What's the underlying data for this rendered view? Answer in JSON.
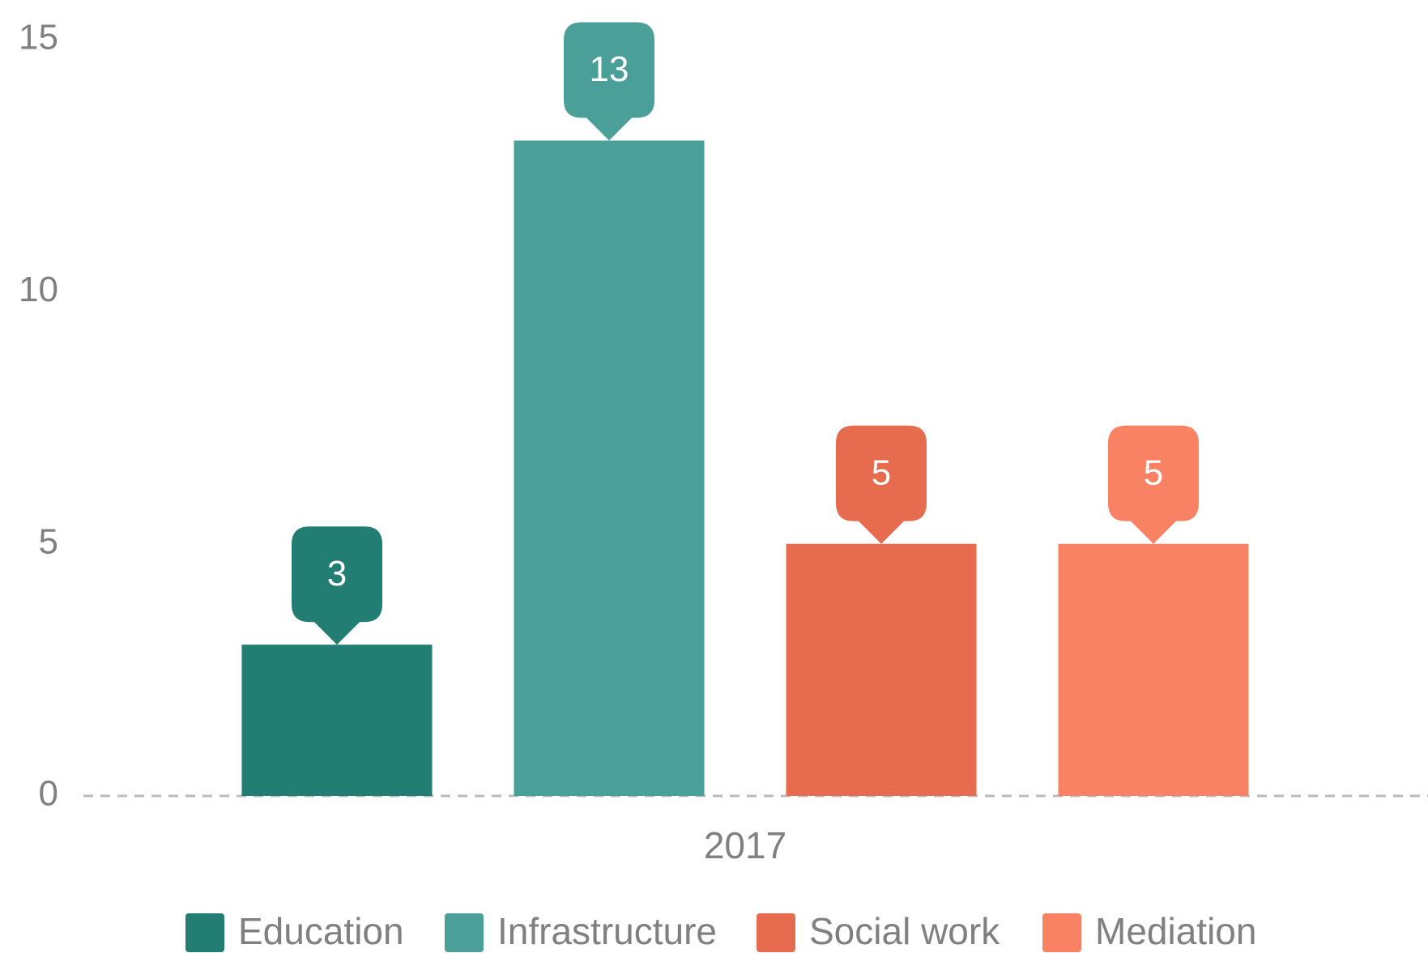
{
  "chart_data": {
    "type": "bar",
    "categories": [
      "2017"
    ],
    "series": [
      {
        "name": "Education",
        "color": "#227e73",
        "values": [
          3
        ]
      },
      {
        "name": "Infrastructure",
        "color": "#4aa098",
        "values": [
          13
        ]
      },
      {
        "name": "Social work",
        "color": "#e76b4e",
        "values": [
          5
        ]
      },
      {
        "name": "Mediation",
        "color": "#f98265",
        "values": [
          5
        ]
      }
    ],
    "ylim": [
      0,
      15
    ],
    "yticks": [
      0,
      5,
      10,
      15
    ],
    "grid": false,
    "legend": "bottom"
  }
}
